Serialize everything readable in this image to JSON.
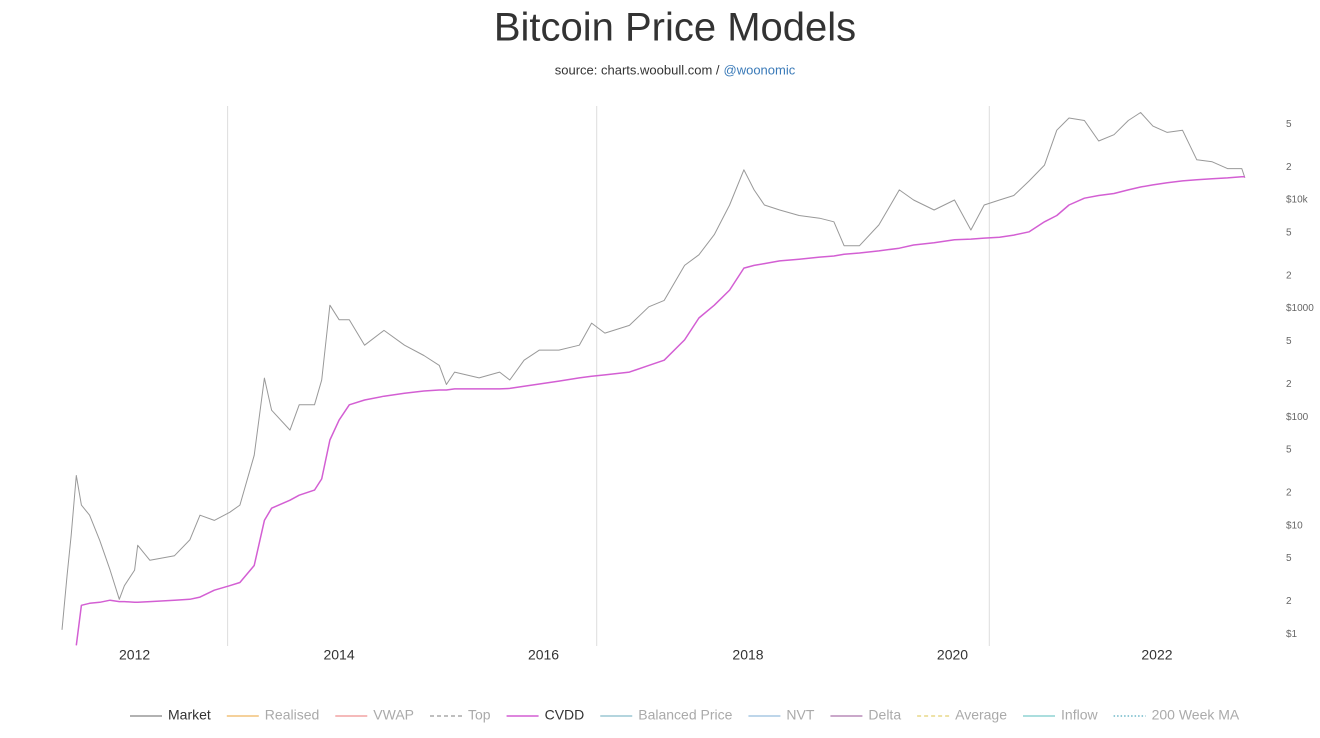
{
  "chart_data": {
    "type": "line",
    "title": "Bitcoin Price Models",
    "source": "source: charts.woobull.com /",
    "handle": "@woonomic",
    "log_y": true,
    "xlim": [
      2011.29,
      2022.91
    ],
    "xticks": [
      2012,
      2014,
      2016,
      2018,
      2020,
      2022
    ],
    "ylim": [
      0.78,
      80000
    ],
    "yticks": [
      {
        "value": 1,
        "label": "$1"
      },
      2,
      5,
      {
        "value": 10,
        "label": "$10"
      },
      {
        "value": 20,
        "label": "2"
      },
      {
        "value": 50,
        "label": "5"
      },
      {
        "value": 100,
        "label": "$100"
      },
      {
        "value": 200,
        "label": "2"
      },
      {
        "value": 500,
        "label": "5"
      },
      {
        "value": 1000,
        "label": "$1000"
      },
      {
        "value": 2000,
        "label": "2"
      },
      {
        "value": 5000,
        "label": "5"
      },
      {
        "value": 10000,
        "label": "$10k"
      },
      {
        "value": 20000,
        "label": "2"
      },
      {
        "value": 50000,
        "label": "5"
      }
    ],
    "vlines": [
      2012.91,
      2016.52,
      2020.36
    ],
    "legend_position": "bottom",
    "x": [
      2011.29,
      2011.34,
      2011.38,
      2011.43,
      2011.48,
      2011.56,
      2011.66,
      2011.76,
      2011.85,
      2011.9,
      2012.0,
      2012.03,
      2012.15,
      2012.39,
      2012.54,
      2012.64,
      2012.78,
      2012.93,
      2013.03,
      2013.17,
      2013.27,
      2013.34,
      2013.52,
      2013.61,
      2013.76,
      2013.83,
      2013.91,
      2014.0,
      2014.1,
      2014.25,
      2014.44,
      2014.64,
      2014.83,
      2014.98,
      2015.05,
      2015.13,
      2015.37,
      2015.57,
      2015.67,
      2015.81,
      2015.96,
      2016.15,
      2016.35,
      2016.47,
      2016.6,
      2016.84,
      2017.03,
      2017.18,
      2017.38,
      2017.52,
      2017.67,
      2017.82,
      2017.96,
      2018.06,
      2018.16,
      2018.31,
      2018.5,
      2018.7,
      2018.84,
      2018.94,
      2019.09,
      2019.28,
      2019.48,
      2019.62,
      2019.82,
      2020.02,
      2020.18,
      2020.31,
      2020.46,
      2020.6,
      2020.75,
      2020.9,
      2021.02,
      2021.14,
      2021.29,
      2021.43,
      2021.58,
      2021.72,
      2021.84,
      2021.96,
      2022.1,
      2022.25,
      2022.39,
      2022.54,
      2022.69,
      2022.83,
      2022.86
    ],
    "series": [
      {
        "name": "Market",
        "color": "#999999",
        "dash": "solid",
        "visible": true,
        "values": [
          1.1,
          3.5,
          8.2,
          29,
          15.5,
          12.5,
          7.3,
          3.9,
          2.1,
          2.8,
          3.9,
          6.6,
          4.8,
          5.3,
          7.4,
          12.5,
          11.2,
          13.3,
          15.5,
          44.5,
          229,
          116,
          76,
          130,
          130,
          220,
          1075,
          790,
          790,
          460,
          630,
          460,
          370,
          300,
          200,
          260,
          230,
          260,
          220,
          335,
          415,
          415,
          460,
          735,
          595,
          700,
          1040,
          1190,
          2500,
          3130,
          4800,
          9000,
          19000,
          12400,
          9000,
          8100,
          7200,
          6800,
          6300,
          3800,
          3800,
          5900,
          12400,
          10000,
          8100,
          10000,
          5300,
          9000,
          10000,
          11000,
          15000,
          21000,
          44000,
          57000,
          54000,
          35000,
          40000,
          54000,
          64000,
          48000,
          42000,
          44000,
          23500,
          22500,
          19500,
          19500,
          16000
        ]
      },
      {
        "name": "Realised",
        "color": "#f2c27a",
        "dash": "solid",
        "visible": false
      },
      {
        "name": "VWAP",
        "color": "#f2a3a3",
        "dash": "solid",
        "visible": false
      },
      {
        "name": "Top",
        "color": "#aaaaaa",
        "dash": "dashed",
        "visible": false
      },
      {
        "name": "CVDD",
        "color": "#d35fd3",
        "dash": "solid",
        "visible": true,
        "values": [
          null,
          null,
          null,
          0.79,
          1.85,
          1.93,
          1.97,
          2.06,
          2.0,
          2.0,
          1.97,
          1.97,
          2.0,
          2.06,
          2.1,
          2.2,
          2.55,
          2.8,
          3.0,
          4.3,
          11.2,
          14.5,
          17.2,
          19.1,
          21.3,
          27,
          61.6,
          94,
          130,
          144,
          156,
          166,
          174,
          178,
          178,
          182,
          182,
          182,
          184,
          193,
          202,
          215,
          230,
          238,
          245,
          260,
          300,
          335,
          515,
          820,
          1075,
          1480,
          2360,
          2500,
          2600,
          2750,
          2850,
          2980,
          3050,
          3170,
          3250,
          3400,
          3600,
          3850,
          4040,
          4300,
          4370,
          4460,
          4550,
          4750,
          5100,
          6300,
          7200,
          9000,
          10400,
          11000,
          11500,
          12400,
          13200,
          13800,
          14400,
          15000,
          15400,
          15700,
          16000,
          16400,
          16400
        ]
      },
      {
        "name": "Balanced Price",
        "color": "#9cc7d4",
        "dash": "solid",
        "visible": false
      },
      {
        "name": "NVT",
        "color": "#a9c9e3",
        "dash": "solid",
        "visible": false
      },
      {
        "name": "Delta",
        "color": "#b98bb9",
        "dash": "solid",
        "visible": false
      },
      {
        "name": "Average",
        "color": "#e8d98a",
        "dash": "dashed",
        "visible": false
      },
      {
        "name": "Inflow",
        "color": "#8fd3d3",
        "dash": "solid",
        "visible": false
      },
      {
        "name": "200 Week MA",
        "color": "#6fb8c8",
        "dash": "dotted",
        "visible": false
      }
    ]
  }
}
